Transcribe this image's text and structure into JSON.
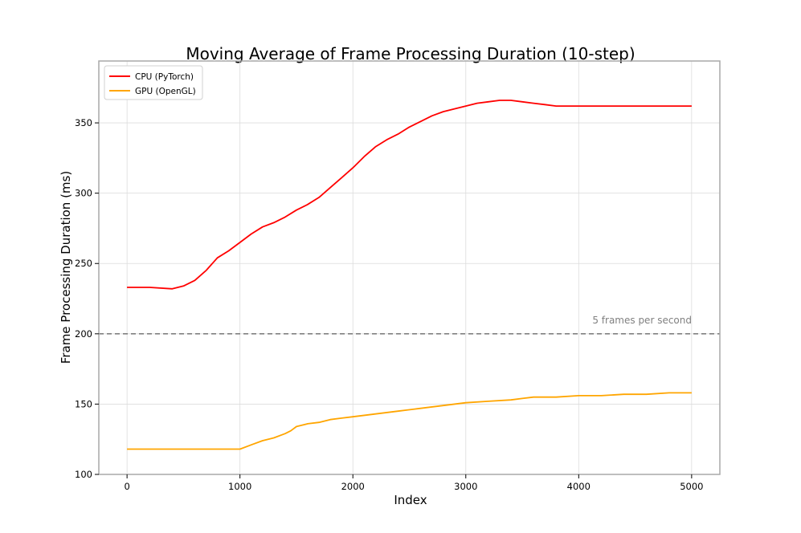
{
  "chart_data": {
    "type": "line",
    "title": "Moving Average of Frame Processing Duration (10-step)",
    "xlabel": "Index",
    "ylabel": "Frame Processing Duration (ms)",
    "xlim": [
      -250,
      5250
    ],
    "ylim": [
      100,
      394
    ],
    "xticks": [
      0,
      1000,
      2000,
      3000,
      4000,
      5000
    ],
    "yticks": [
      100,
      150,
      200,
      250,
      300,
      350
    ],
    "grid": true,
    "legend_position": "top-left",
    "series": [
      {
        "name": "CPU (PyTorch)",
        "color": "#ff0000",
        "x": [
          0,
          200,
          400,
          500,
          600,
          700,
          800,
          900,
          1000,
          1100,
          1200,
          1300,
          1400,
          1500,
          1600,
          1700,
          1800,
          1900,
          2000,
          2100,
          2200,
          2300,
          2400,
          2500,
          2600,
          2700,
          2800,
          2900,
          3000,
          3100,
          3200,
          3300,
          3400,
          3500,
          3600,
          3700,
          3800,
          3900,
          4000,
          4200,
          4400,
          4600,
          4800,
          5000
        ],
        "values": [
          233,
          233,
          232,
          234,
          238,
          245,
          254,
          259,
          265,
          271,
          276,
          279,
          283,
          288,
          292,
          297,
          304,
          311,
          318,
          326,
          333,
          338,
          342,
          347,
          351,
          355,
          358,
          360,
          362,
          364,
          365,
          366,
          366,
          365,
          364,
          363,
          362,
          362,
          362,
          362,
          362,
          362,
          362,
          362
        ]
      },
      {
        "name": "GPU (OpenGL)",
        "color": "#ffa500",
        "x": [
          0,
          200,
          400,
          600,
          800,
          1000,
          1100,
          1200,
          1300,
          1400,
          1450,
          1500,
          1600,
          1700,
          1800,
          1900,
          2000,
          2200,
          2400,
          2600,
          2800,
          3000,
          3200,
          3400,
          3500,
          3600,
          3800,
          4000,
          4200,
          4400,
          4600,
          4800,
          5000
        ],
        "values": [
          118,
          118,
          118,
          118,
          118,
          118,
          121,
          124,
          126,
          129,
          131,
          134,
          136,
          137,
          139,
          140,
          141,
          143,
          145,
          147,
          149,
          151,
          152,
          153,
          154,
          155,
          155,
          156,
          156,
          157,
          157,
          158,
          158
        ]
      }
    ],
    "annotations": [
      {
        "y": 200,
        "style": "dashed",
        "color": "#808080",
        "text": "5 frames per second"
      }
    ]
  }
}
